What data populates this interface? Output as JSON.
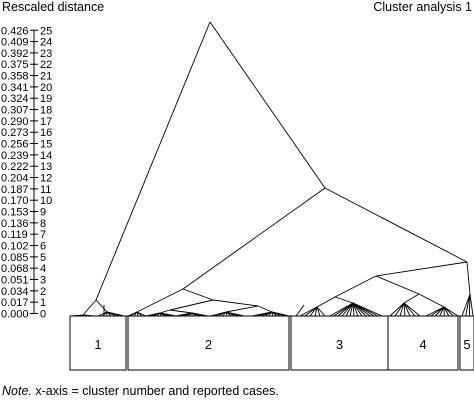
{
  "header": {
    "left_title": "Rescaled distance",
    "right_title": "Cluster analysis 1"
  },
  "axis": {
    "levels": [
      {
        "value": "0.000",
        "step": "0"
      },
      {
        "value": "0.017",
        "step": "1"
      },
      {
        "value": "0.034",
        "step": "2"
      },
      {
        "value": "0.051",
        "step": "3"
      },
      {
        "value": "0.068",
        "step": "4"
      },
      {
        "value": "0.085",
        "step": "5"
      },
      {
        "value": "0.102",
        "step": "6"
      },
      {
        "value": "0.119",
        "step": "7"
      },
      {
        "value": "0.136",
        "step": "8"
      },
      {
        "value": "0.153",
        "step": "9"
      },
      {
        "value": "0.170",
        "step": "10"
      },
      {
        "value": "0.187",
        "step": "11"
      },
      {
        "value": "0.204",
        "step": "12"
      },
      {
        "value": "0.222",
        "step": "13"
      },
      {
        "value": "0.239",
        "step": "14"
      },
      {
        "value": "0.256",
        "step": "15"
      },
      {
        "value": "0.273",
        "step": "16"
      },
      {
        "value": "0.290",
        "step": "17"
      },
      {
        "value": "0.307",
        "step": "18"
      },
      {
        "value": "0.324",
        "step": "19"
      },
      {
        "value": "0.341",
        "step": "20"
      },
      {
        "value": "0.358",
        "step": "21"
      },
      {
        "value": "0.375",
        "step": "22"
      },
      {
        "value": "0.392",
        "step": "23"
      },
      {
        "value": "0.409",
        "step": "24"
      },
      {
        "value": "0.426",
        "step": "25"
      }
    ]
  },
  "clusters": [
    {
      "label": "1"
    },
    {
      "label": "2"
    },
    {
      "label": "3"
    },
    {
      "label": "4"
    },
    {
      "label": "5"
    }
  ],
  "note": {
    "prefix": "Note.",
    "text": " x-axis = cluster number and reported cases."
  }
}
